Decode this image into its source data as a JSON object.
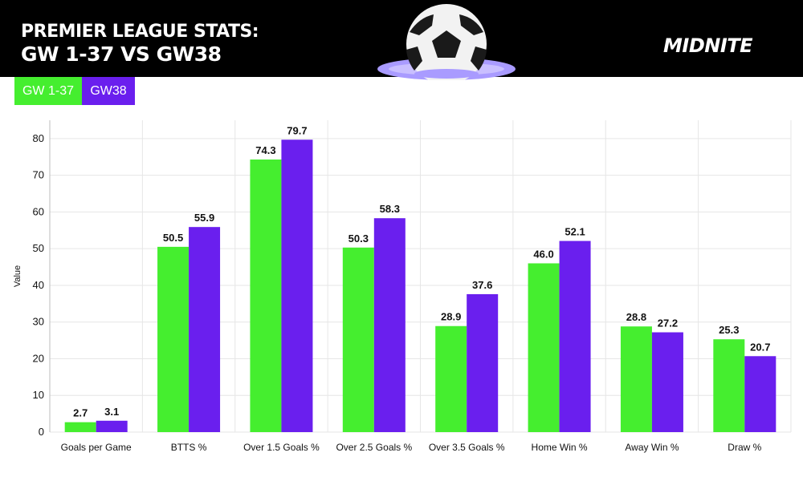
{
  "header": {
    "title_line1": "PREMIER LEAGUE STATS:",
    "title_line2": "GW 1-37 VS GW38",
    "brand": "MIDNITE"
  },
  "legend": {
    "items": [
      {
        "label": "GW 1-37",
        "color": "#45ee2f"
      },
      {
        "label": "GW38",
        "color": "#6a1fee"
      }
    ]
  },
  "chart_data": {
    "type": "bar",
    "ylabel": "Value",
    "xlabel": "",
    "ylim": [
      0,
      85
    ],
    "yticks": [
      0,
      10,
      20,
      30,
      40,
      50,
      60,
      70,
      80
    ],
    "grid": true,
    "categories": [
      "Goals per Game",
      "BTTS %",
      "Over 1.5 Goals %",
      "Over 2.5 Goals %",
      "Over 3.5 Goals %",
      "Home Win %",
      "Away Win %",
      "Draw %"
    ],
    "series": [
      {
        "name": "GW 1-37",
        "color": "#45ee2f",
        "values": [
          2.7,
          50.5,
          74.3,
          50.3,
          28.9,
          46.0,
          28.8,
          25.3
        ],
        "labels": [
          "2.7",
          "50.5",
          "74.3",
          "50.3",
          "28.9",
          "46.0",
          "28.8",
          "25.3"
        ]
      },
      {
        "name": "GW38",
        "color": "#6a1fee",
        "values": [
          3.1,
          55.9,
          79.7,
          58.3,
          37.6,
          52.1,
          27.2,
          20.7
        ],
        "labels": [
          "3.1",
          "55.9",
          "79.7",
          "58.3",
          "37.6",
          "52.1",
          "27.2",
          "20.7"
        ]
      }
    ]
  }
}
